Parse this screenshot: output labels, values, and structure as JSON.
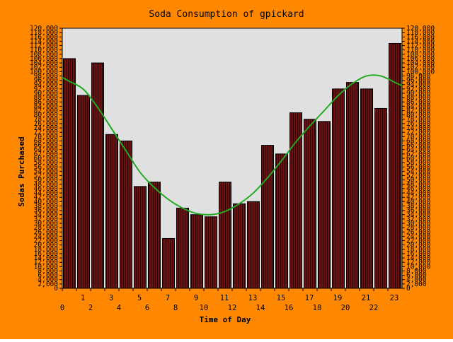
{
  "colors": {
    "background": "#ff8800",
    "plot_bg": "#e0e0e0",
    "bar_fill": "#6b1212",
    "bar_stripe": "#2a0000",
    "trend_line": "#22aa22",
    "text": "#000000"
  },
  "chart_data": {
    "type": "bar",
    "title": "Soda Consumption of gpickard",
    "xlabel": "Time of Day",
    "ylabel": "Sodas Purchased",
    "categories": [
      "0",
      "1",
      "2",
      "3",
      "4",
      "5",
      "6",
      "7",
      "8",
      "9",
      "10",
      "11",
      "12",
      "13",
      "14",
      "15",
      "16",
      "17",
      "18",
      "19",
      "20",
      "21",
      "22",
      "23"
    ],
    "values": [
      106,
      89,
      104,
      71,
      68,
      47,
      49,
      23,
      37,
      34,
      33,
      49,
      39,
      40,
      66,
      62,
      81,
      78,
      77,
      92,
      95,
      92,
      83,
      113
    ],
    "trend": {
      "type": "smoothed-line",
      "values": [
        95.5,
        91.8,
        83.5,
        73.5,
        63.5,
        53.5,
        46.5,
        41,
        37,
        34.5,
        34,
        35.5,
        39,
        44,
        51,
        59,
        67.5,
        75,
        82,
        89,
        94.5,
        98,
        98,
        95
      ]
    },
    "ylim": [
      0,
      120
    ],
    "ytick_step": 2,
    "ytick_labels_both_sides": true,
    "grid": false,
    "legend": "none"
  }
}
